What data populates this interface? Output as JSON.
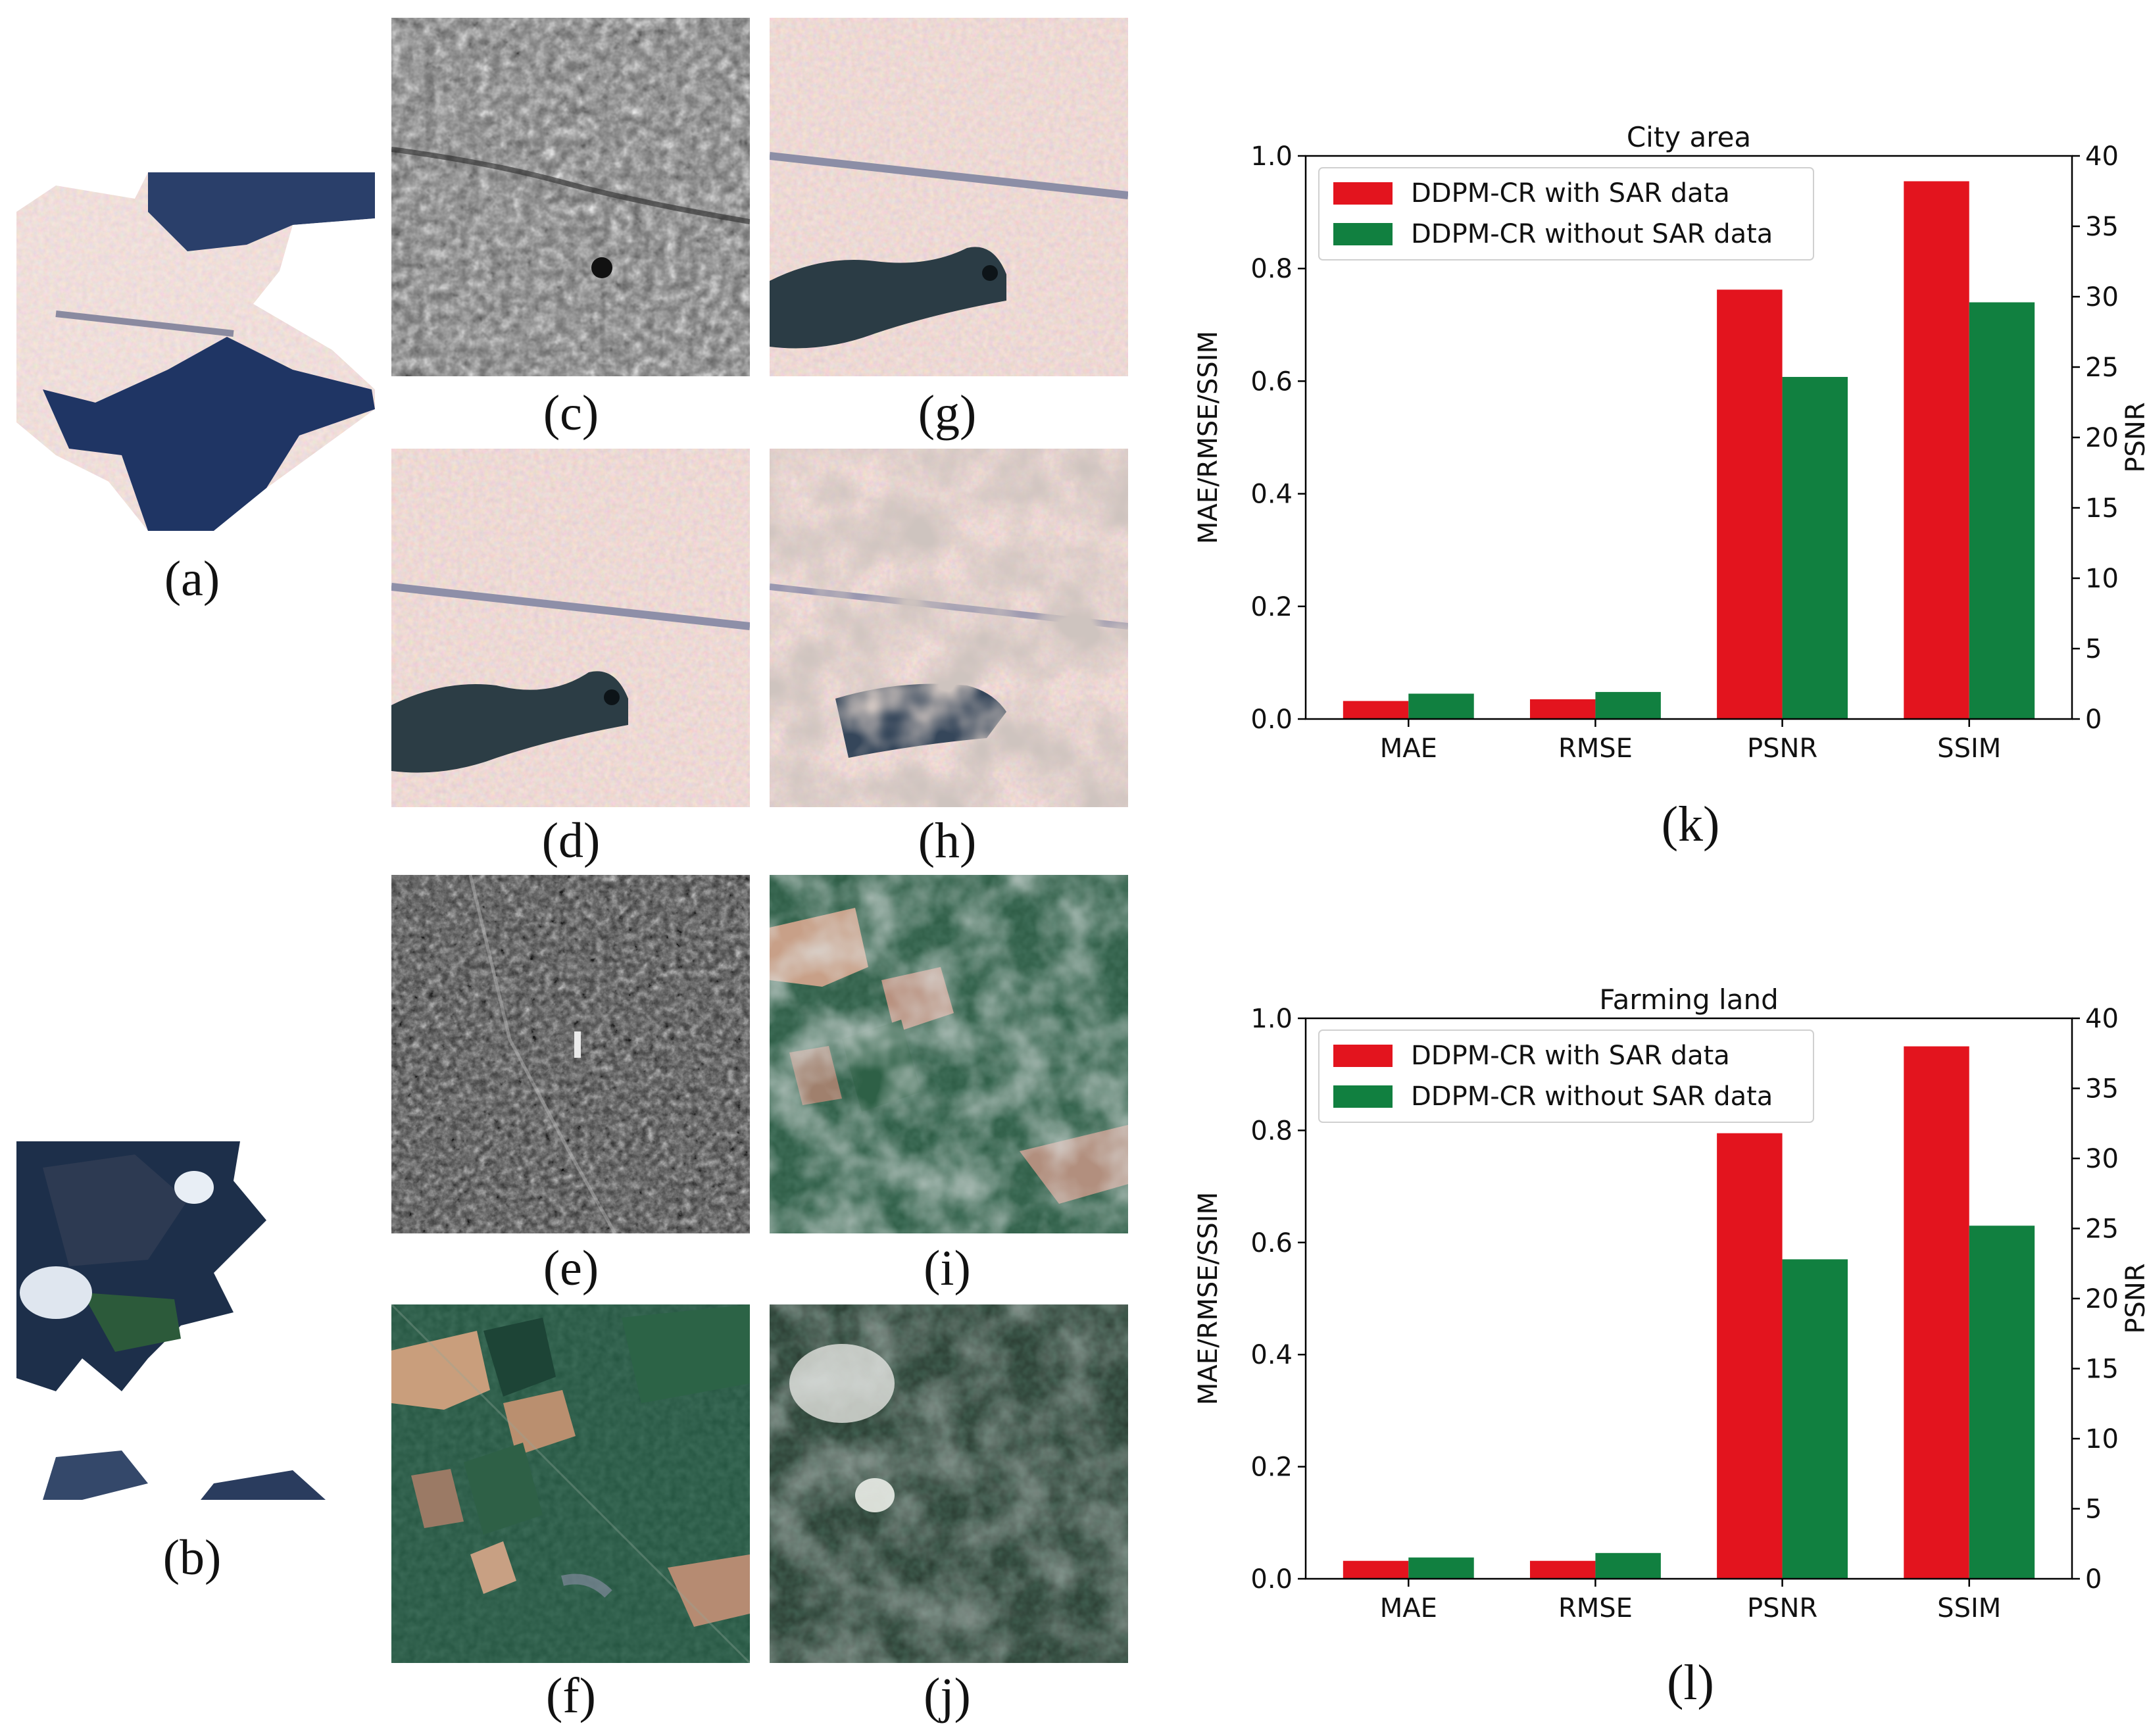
{
  "panels": {
    "a": "(a)",
    "b": "(b)",
    "c": "(c)",
    "d": "(d)",
    "e": "(e)",
    "f": "(f)",
    "g": "(g)",
    "h": "(h)",
    "i": "(i)",
    "j": "(j)",
    "k": "(k)",
    "l": "(l)"
  },
  "colors": {
    "with_sar": "#e3141e",
    "without_sar": "#118040"
  },
  "chart_data": [
    {
      "type": "bar",
      "panel": "(k)",
      "title": "City area",
      "categories": [
        "MAE",
        "RMSE",
        "PSNR",
        "SSIM"
      ],
      "ylabel": "MAE/RMSE/SSIM",
      "ylabel_right": "PSNR",
      "ylim": [
        0,
        1.0
      ],
      "ylim_right": [
        0,
        40
      ],
      "yticks": [
        "0.0",
        "0.2",
        "0.4",
        "0.6",
        "0.8",
        "1.0"
      ],
      "yticks_right": [
        "0",
        "5",
        "10",
        "15",
        "20",
        "25",
        "30",
        "35",
        "40"
      ],
      "series": [
        {
          "name": "DDPM-CR with SAR data",
          "axis_values": [
            0.032,
            0.035,
            30.5,
            0.955
          ]
        },
        {
          "name": "DDPM-CR without SAR data",
          "axis_values": [
            0.045,
            0.048,
            24.3,
            0.74
          ]
        }
      ],
      "value_axis": [
        "left",
        "left",
        "right",
        "left"
      ],
      "legend": "upper-left"
    },
    {
      "type": "bar",
      "panel": "(l)",
      "title": "Farming land",
      "categories": [
        "MAE",
        "RMSE",
        "PSNR",
        "SSIM"
      ],
      "ylabel": "MAE/RMSE/SSIM",
      "ylabel_right": "PSNR",
      "ylim": [
        0,
        1.0
      ],
      "ylim_right": [
        0,
        40
      ],
      "yticks": [
        "0.0",
        "0.2",
        "0.4",
        "0.6",
        "0.8",
        "1.0"
      ],
      "yticks_right": [
        "0",
        "5",
        "10",
        "15",
        "20",
        "25",
        "30",
        "35",
        "40"
      ],
      "series": [
        {
          "name": "DDPM-CR with SAR data",
          "axis_values": [
            0.032,
            0.032,
            31.8,
            0.95
          ]
        },
        {
          "name": "DDPM-CR without SAR data",
          "axis_values": [
            0.038,
            0.046,
            22.8,
            0.63
          ]
        }
      ],
      "value_axis": [
        "left",
        "left",
        "right",
        "left"
      ],
      "legend": "upper-left"
    }
  ]
}
